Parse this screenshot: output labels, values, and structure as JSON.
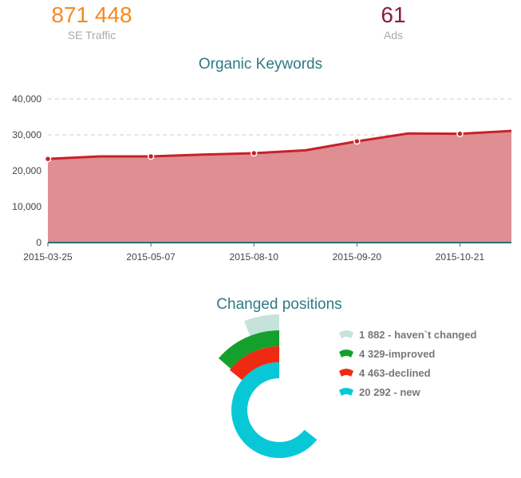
{
  "kpis": [
    {
      "value": "871 448",
      "label": "SE Traffic",
      "color": "#f58a22"
    },
    {
      "value": "61",
      "label": "Ads",
      "color": "#8a1a4a"
    }
  ],
  "chart_data": [
    {
      "type": "area",
      "title": "Organic Keywords",
      "x_tick_labels": [
        "2015-03-25",
        "",
        "2015-05-07",
        "",
        "2015-08-10",
        "",
        "2015-09-20",
        "",
        "2015-10-21",
        ""
      ],
      "values": [
        23300,
        24000,
        24000,
        24500,
        24900,
        25700,
        28200,
        30400,
        30300,
        31100
      ],
      "ylim": [
        0,
        40000
      ],
      "y_ticks": [
        "0",
        "10,000",
        "20,000",
        "30,000",
        "40,000"
      ],
      "grid": true,
      "line_color": "#c8202a",
      "fill_color": "#df8e92"
    },
    {
      "type": "radial-bar",
      "title": "Changed positions",
      "series": [
        {
          "name": "1 882 - haven`t changed",
          "value": 1882,
          "color": "#c5e3dc"
        },
        {
          "name": "4 329-improved",
          "value": 4329,
          "color": "#14a02c"
        },
        {
          "name": "4 463-declined",
          "value": 4463,
          "color": "#ee2b12"
        },
        {
          "name": "20 292 - new",
          "value": 20292,
          "color": "#08c8d8"
        }
      ],
      "legend": "right"
    }
  ]
}
